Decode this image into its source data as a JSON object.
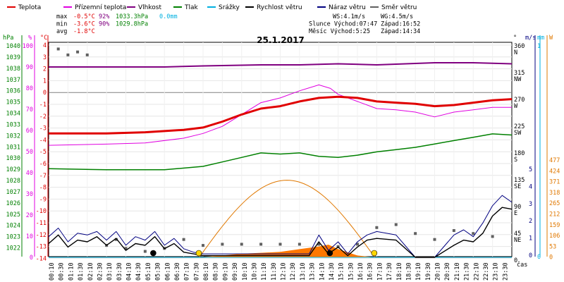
{
  "chart_data": {
    "type": "line",
    "title": "25.1.2017",
    "legend": [
      {
        "name": "Teplota",
        "color": "#e00000"
      },
      {
        "name": "Přízemní teplota",
        "color": "#e000e0"
      },
      {
        "name": "Vlhkost",
        "color": "#800080"
      },
      {
        "name": "Tlak",
        "color": "#008000"
      },
      {
        "name": "Srážky",
        "color": "#00b0e0"
      },
      {
        "name": "Rychlost větru",
        "color": "#000000"
      },
      {
        "name": "Náraz větru",
        "color": "#000080"
      },
      {
        "name": "Směr větru",
        "color": "#606060"
      }
    ],
    "stats": {
      "max_label": "max",
      "max_temp": "-0.5°C",
      "max_hum": "92%",
      "max_press": "1033.3hPa",
      "max_rain": "0.0mm",
      "min_label": "min",
      "min_temp": "-3.6°C",
      "min_hum": "90%",
      "min_press": "1029.8hPa",
      "avg_label": "avg",
      "avg_temp": "-1.8°C",
      "ws": "WS:4.1m/s",
      "wg": "WG:4.5m/s",
      "sun_rise": "Slunce Východ:07:47",
      "sun_set": "Západ:16:52",
      "moon_rise": "Měsíc  Východ:5:25",
      "moon_set": "Západ:14:34"
    },
    "axes": {
      "hpa_title": "hPa",
      "pct_title": "%",
      "c_title": "°C",
      "deg_title": "°",
      "ms_title": "m/s",
      "mm_title": "mm",
      "w_title": "W",
      "hpa_ticks": [
        "1040",
        "1039",
        "1038",
        "1037",
        "1036",
        "1035",
        "1034",
        "1033",
        "1032",
        "1031",
        "1030",
        "1029",
        "1028",
        "1027",
        "1026",
        "1025",
        "1024",
        "1023",
        "1022"
      ],
      "pct_ticks": [
        "100",
        "90",
        "80",
        "70",
        "60",
        "50",
        "40",
        "30",
        "20",
        "10",
        "0"
      ],
      "c_ticks": [
        "4",
        "3",
        "2",
        "1",
        "0",
        "-1",
        "-2",
        "-3",
        "-4",
        "-5",
        "-6",
        "-7",
        "-8",
        "-9",
        "-10",
        "-11",
        "-12",
        "-13",
        "-14"
      ],
      "dir_ticks": [
        {
          "deg": "360",
          "dir": "N"
        },
        {
          "deg": "315",
          "dir": "NW"
        },
        {
          "deg": "270",
          "dir": "W"
        },
        {
          "deg": "225",
          "dir": "SW"
        },
        {
          "deg": "180",
          "dir": "S"
        },
        {
          "deg": "135",
          "dir": "SE"
        },
        {
          "deg": "90",
          "dir": "E"
        },
        {
          "deg": "45",
          "dir": "NE"
        },
        {
          "deg": "0",
          "dir": ""
        }
      ],
      "ms_ticks": [
        "5",
        "4",
        "3",
        "2",
        "1",
        "0"
      ],
      "mm_ticks": [
        "1",
        "0"
      ],
      "w_ticks": [
        "477",
        "424",
        "371",
        "318",
        "265",
        "212",
        "159",
        "106",
        "53",
        "0"
      ],
      "x_label": "čas",
      "time_labels": [
        "00:10",
        "00:30",
        "01:10",
        "01:30",
        "02:10",
        "02:30",
        "03:10",
        "03:30",
        "04:10",
        "04:30",
        "05:10",
        "05:30",
        "06:10",
        "06:30",
        "07:10",
        "07:30",
        "08:10",
        "08:30",
        "09:10",
        "09:30",
        "10:10",
        "10:30",
        "11:10",
        "11:30",
        "12:10",
        "12:30",
        "13:10",
        "13:30",
        "14:10",
        "14:30",
        "15:10",
        "15:30",
        "16:10",
        "16:30",
        "17:10",
        "17:30",
        "18:10",
        "18:30",
        "19:10",
        "19:30",
        "20:10",
        "20:30",
        "21:10",
        "21:30",
        "22:10",
        "22:30",
        "23:10",
        "23:30"
      ]
    },
    "series": [
      {
        "name": "Teplota",
        "unit": "°C",
        "color": "#e00000",
        "points": [
          [
            0,
            -3.6
          ],
          [
            3,
            -3.6
          ],
          [
            5,
            -3.5
          ],
          [
            7,
            -3.3
          ],
          [
            8,
            -3.1
          ],
          [
            9,
            -2.6
          ],
          [
            10,
            -2.0
          ],
          [
            11,
            -1.5
          ],
          [
            12,
            -1.3
          ],
          [
            13,
            -0.9
          ],
          [
            14,
            -0.6
          ],
          [
            15,
            -0.5
          ],
          [
            16,
            -0.6
          ],
          [
            17,
            -0.9
          ],
          [
            18,
            -1.0
          ],
          [
            19,
            -1.1
          ],
          [
            20,
            -1.3
          ],
          [
            21,
            -1.2
          ],
          [
            22,
            -1.0
          ],
          [
            23,
            -0.8
          ],
          [
            24,
            -0.7
          ]
        ]
      },
      {
        "name": "Přízemní teplota",
        "unit": "°C",
        "color": "#e000e0",
        "points": [
          [
            0,
            -4.6
          ],
          [
            3,
            -4.5
          ],
          [
            5,
            -4.4
          ],
          [
            7,
            -4.0
          ],
          [
            8,
            -3.6
          ],
          [
            9,
            -3.0
          ],
          [
            10,
            -2.0
          ],
          [
            11,
            -1.0
          ],
          [
            12,
            -0.6
          ],
          [
            13,
            0.0
          ],
          [
            14,
            0.5
          ],
          [
            14.6,
            0.2
          ],
          [
            15,
            -0.3
          ],
          [
            16,
            -0.9
          ],
          [
            17,
            -1.5
          ],
          [
            18,
            -1.6
          ],
          [
            19,
            -1.8
          ],
          [
            20,
            -2.2
          ],
          [
            21,
            -1.8
          ],
          [
            22,
            -1.6
          ],
          [
            23,
            -1.4
          ],
          [
            24,
            -1.4
          ]
        ]
      },
      {
        "name": "Vlhkost",
        "unit": "%",
        "color": "#800080",
        "points": [
          [
            0,
            90
          ],
          [
            6,
            90
          ],
          [
            8,
            90.5
          ],
          [
            11,
            91
          ],
          [
            13,
            91
          ],
          [
            15,
            91.5
          ],
          [
            17,
            91
          ],
          [
            20,
            92
          ],
          [
            22,
            92
          ],
          [
            24,
            91.5
          ]
        ]
      },
      {
        "name": "Tlak",
        "unit": "hPa",
        "color": "#008000",
        "points": [
          [
            0,
            1029.9
          ],
          [
            3,
            1029.8
          ],
          [
            6,
            1029.8
          ],
          [
            8,
            1030.1
          ],
          [
            9,
            1030.5
          ],
          [
            10,
            1030.9
          ],
          [
            11,
            1031.3
          ],
          [
            12,
            1031.2
          ],
          [
            13,
            1031.3
          ],
          [
            14,
            1031.0
          ],
          [
            15,
            1030.9
          ],
          [
            16,
            1031.1
          ],
          [
            17,
            1031.4
          ],
          [
            18,
            1031.6
          ],
          [
            19,
            1031.8
          ],
          [
            20,
            1032.1
          ],
          [
            21,
            1032.4
          ],
          [
            22,
            1032.7
          ],
          [
            23,
            1033.0
          ],
          [
            24,
            1032.9
          ]
        ]
      },
      {
        "name": "Srážky",
        "unit": "mm",
        "color": "#00b0e0",
        "points": [
          [
            0,
            0
          ],
          [
            24,
            0
          ]
        ]
      },
      {
        "name": "Rychlost větru",
        "unit": "m/s",
        "color": "#000000",
        "points": [
          [
            0,
            0.8
          ],
          [
            0.5,
            1.3
          ],
          [
            1,
            0.6
          ],
          [
            1.5,
            1.0
          ],
          [
            2,
            0.9
          ],
          [
            2.5,
            1.2
          ],
          [
            3,
            0.7
          ],
          [
            3.5,
            1.1
          ],
          [
            4,
            0.4
          ],
          [
            4.5,
            0.8
          ],
          [
            5,
            0.7
          ],
          [
            5.5,
            1.2
          ],
          [
            6,
            0.5
          ],
          [
            6.5,
            0.8
          ],
          [
            7,
            0.3
          ],
          [
            7.5,
            0.2
          ],
          [
            8,
            0.1
          ],
          [
            10,
            0.1
          ],
          [
            12,
            0.1
          ],
          [
            13.5,
            0.1
          ],
          [
            14,
            0.9
          ],
          [
            14.5,
            0.2
          ],
          [
            15,
            0.6
          ],
          [
            15.5,
            0.1
          ],
          [
            16,
            0.6
          ],
          [
            16.5,
            1.0
          ],
          [
            17,
            1.1
          ],
          [
            18,
            1.0
          ],
          [
            19,
            0.0
          ],
          [
            20,
            0.0
          ],
          [
            21,
            0.7
          ],
          [
            21.5,
            1.0
          ],
          [
            22,
            0.9
          ],
          [
            22.5,
            1.4
          ],
          [
            23,
            2.4
          ],
          [
            23.5,
            2.9
          ],
          [
            24,
            2.8
          ]
        ]
      },
      {
        "name": "Náraz větru",
        "unit": "m/s",
        "color": "#000080",
        "points": [
          [
            0,
            1.2
          ],
          [
            0.5,
            1.7
          ],
          [
            1,
            0.9
          ],
          [
            1.5,
            1.4
          ],
          [
            2,
            1.3
          ],
          [
            2.5,
            1.5
          ],
          [
            3,
            1.0
          ],
          [
            3.5,
            1.5
          ],
          [
            4,
            0.7
          ],
          [
            4.5,
            1.2
          ],
          [
            5,
            1.0
          ],
          [
            5.5,
            1.5
          ],
          [
            6,
            0.7
          ],
          [
            6.5,
            1.1
          ],
          [
            7,
            0.5
          ],
          [
            7.5,
            0.3
          ],
          [
            8,
            0.2
          ],
          [
            10,
            0.2
          ],
          [
            12,
            0.2
          ],
          [
            13.5,
            0.2
          ],
          [
            14,
            1.3
          ],
          [
            14.5,
            0.4
          ],
          [
            15,
            0.9
          ],
          [
            15.5,
            0.2
          ],
          [
            16,
            0.9
          ],
          [
            16.5,
            1.3
          ],
          [
            17,
            1.5
          ],
          [
            18,
            1.3
          ],
          [
            19,
            0.0
          ],
          [
            20,
            0.0
          ],
          [
            21,
            1.3
          ],
          [
            21.5,
            1.6
          ],
          [
            22,
            1.2
          ],
          [
            22.5,
            2.0
          ],
          [
            23,
            3.0
          ],
          [
            23.5,
            3.6
          ],
          [
            24,
            3.2
          ]
        ]
      },
      {
        "name": "Směr větru",
        "unit": "°",
        "color": "#606060",
        "points": [
          [
            0.5,
            350
          ],
          [
            1,
            340
          ],
          [
            1.5,
            345
          ],
          [
            2,
            340
          ],
          [
            3,
            20
          ],
          [
            3.5,
            30
          ],
          [
            4,
            15
          ],
          [
            5,
            10
          ],
          [
            6,
            15
          ],
          [
            7,
            30
          ],
          [
            8,
            20
          ],
          [
            9,
            22
          ],
          [
            10,
            22
          ],
          [
            11,
            22
          ],
          [
            12,
            22
          ],
          [
            13,
            22
          ],
          [
            14,
            22
          ],
          [
            15,
            18
          ],
          [
            16,
            22
          ],
          [
            17,
            50
          ],
          [
            18,
            55
          ],
          [
            19,
            40
          ],
          [
            20,
            30
          ],
          [
            21,
            45
          ],
          [
            22,
            40
          ],
          [
            23,
            35
          ]
        ]
      },
      {
        "name": "Sluneční záření",
        "unit": "W",
        "color": "#e07800",
        "points": [
          [
            7.8,
            0
          ],
          [
            9,
            130
          ],
          [
            10,
            250
          ],
          [
            11,
            370
          ],
          [
            12,
            425
          ],
          [
            13,
            370
          ],
          [
            14,
            250
          ],
          [
            15,
            120
          ],
          [
            16,
            15
          ],
          [
            16.9,
            0
          ]
        ]
      },
      {
        "name": "Sluneční záření (naměřené)",
        "unit": "W",
        "color": "#ff7800",
        "points": [
          [
            7.8,
            0
          ],
          [
            9,
            10
          ],
          [
            10,
            20
          ],
          [
            11,
            25
          ],
          [
            12,
            30
          ],
          [
            13,
            45
          ],
          [
            14,
            60
          ],
          [
            14.5,
            70
          ],
          [
            15,
            45
          ],
          [
            16,
            10
          ],
          [
            16.9,
            0
          ]
        ]
      }
    ],
    "markers": [
      {
        "name": "Východ měsíce",
        "time": 5.42,
        "color": "#000000"
      },
      {
        "name": "Východ slunce",
        "time": 7.78,
        "color": "#ffd700"
      },
      {
        "name": "Západ měsíce",
        "time": 14.57,
        "color": "#000000"
      },
      {
        "name": "Západ slunce",
        "time": 16.87,
        "color": "#ffd700"
      }
    ]
  }
}
